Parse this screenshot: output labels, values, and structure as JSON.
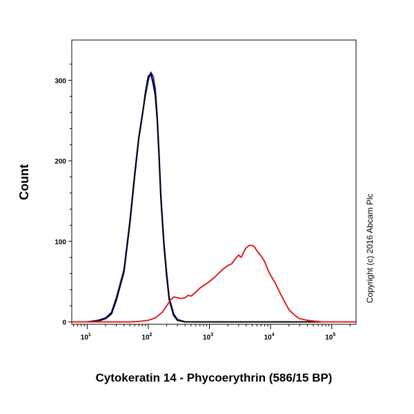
{
  "chart_data": {
    "type": "line",
    "title": "",
    "xlabel": "Cytokeratin 14 - Phycoerythrin (586/15 BP)",
    "ylabel": "Count",
    "x_scale": "log",
    "xlim": [
      5.6,
      250000
    ],
    "ylim": [
      -3,
      350
    ],
    "y_ticks": [
      0,
      100,
      200,
      300
    ],
    "y_tick_labels": [
      "0",
      "100",
      "200",
      "300"
    ],
    "x_ticks": [
      10,
      100,
      1000,
      10000,
      100000
    ],
    "x_tick_base": "10",
    "x_tick_exponents": [
      "1",
      "2",
      "3",
      "4",
      "5"
    ],
    "grid": false,
    "legend": "none",
    "annotation": "Copyright (c) 2016 Abcam Plc",
    "series": [
      {
        "color": "#2222cc",
        "x": [
          5.6,
          8,
          10,
          15,
          20,
          25,
          30,
          40,
          50,
          60,
          70,
          80,
          90,
          100,
          110,
          120,
          130,
          140,
          150,
          160,
          180,
          200,
          220,
          260,
          300,
          400,
          1000,
          250000
        ],
        "y": [
          0,
          0,
          0,
          2,
          5,
          12,
          30,
          65,
          125,
          185,
          230,
          258,
          282,
          300,
          310,
          305,
          290,
          255,
          210,
          160,
          100,
          60,
          30,
          10,
          3,
          0,
          0,
          0
        ]
      },
      {
        "color": "#000000",
        "x": [
          5.6,
          8,
          10,
          15,
          20,
          25,
          30,
          40,
          50,
          60,
          70,
          80,
          90,
          100,
          110,
          120,
          130,
          140,
          150,
          160,
          180,
          200,
          220,
          260,
          300,
          400,
          1000,
          250000
        ],
        "y": [
          0,
          0,
          0,
          1,
          4,
          10,
          27,
          62,
          122,
          182,
          228,
          256,
          286,
          305,
          308,
          296,
          282,
          250,
          205,
          155,
          96,
          56,
          27,
          8,
          2,
          0,
          0,
          0
        ]
      },
      {
        "color": "#e02020",
        "x": [
          5.6,
          50,
          70,
          100,
          130,
          170,
          200,
          230,
          260,
          300,
          350,
          400,
          450,
          500,
          600,
          700,
          800,
          1000,
          1200,
          1400,
          1700,
          2000,
          2300,
          2700,
          3000,
          3300,
          3700,
          4000,
          4500,
          5000,
          5500,
          6000,
          7000,
          8000,
          9000,
          10000,
          12000,
          14000,
          17000,
          20000,
          25000,
          30000,
          40000,
          50000,
          70000,
          100000,
          250000
        ],
        "y": [
          0,
          0,
          0.5,
          2,
          5,
          12,
          20,
          27,
          31,
          30,
          29,
          30,
          33,
          32,
          37,
          42,
          45,
          50,
          55,
          60,
          66,
          70,
          72,
          79,
          83,
          80,
          88,
          92,
          95,
          95,
          93,
          88,
          82,
          75,
          65,
          58,
          48,
          37,
          25,
          15,
          8,
          4,
          2,
          1,
          0,
          0,
          0
        ]
      }
    ]
  }
}
